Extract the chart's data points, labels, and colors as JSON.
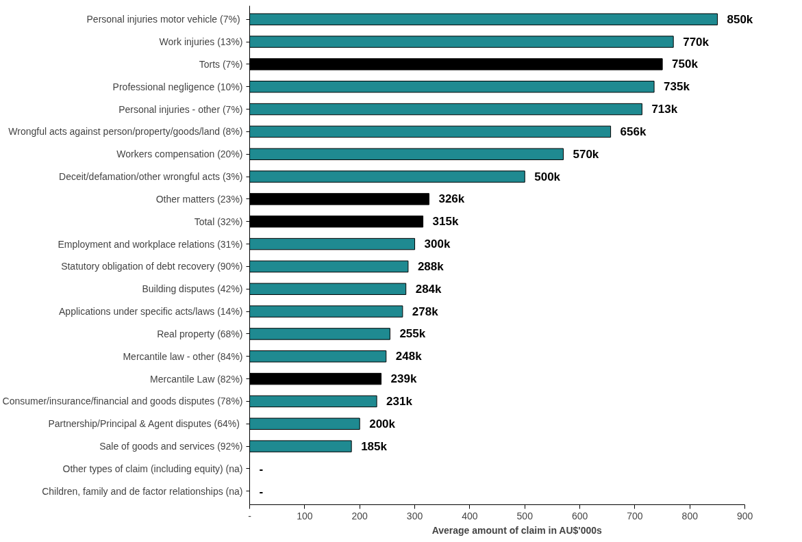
{
  "chart_data": {
    "type": "bar",
    "orientation": "horizontal",
    "xlabel": "Average amount of claim in AU$'000s",
    "categories": [
      "Personal injuries motor vehicle  (7%)",
      "Work injuries (13%)",
      "Torts (7%)",
      "Professional negligence (10%)",
      "Personal injuries - other (7%)",
      "Wrongful acts against person/property/goods/land (8%)",
      "Workers compensation (20%)",
      "Deceit/defamation/other wrongful acts (3%)",
      "Other matters (23%)",
      "Total (32%)",
      "Employment and workplace relations (31%)",
      "Statutory obligation of debt recovery (90%)",
      "Building disputes (42%)",
      "Applications under specific acts/laws (14%)",
      "Real property (68%)",
      "Mercantile law - other (84%)",
      "Mercantile Law (82%)",
      "Consumer/insurance/financial and goods disputes (78%)",
      "Partnership/Principal & Agent disputes  (64%)",
      "Sale of goods and services (92%)",
      "Other types of claim (including equity) (na)",
      "Children, family and de factor relationships (na)"
    ],
    "values": [
      850,
      770,
      750,
      735,
      713,
      656,
      570,
      500,
      326,
      315,
      300,
      288,
      284,
      278,
      255,
      248,
      239,
      231,
      200,
      185,
      null,
      null
    ],
    "value_labels": [
      "850k",
      "770k",
      "750k",
      "735k",
      "713k",
      "656k",
      "570k",
      "500k",
      "326k",
      "315k",
      "300k",
      "288k",
      "284k",
      "278k",
      "255k",
      "248k",
      "239k",
      "231k",
      "200k",
      "185k",
      "-",
      "-"
    ],
    "colors": [
      "#1f8a91",
      "#1f8a91",
      "#000000",
      "#1f8a91",
      "#1f8a91",
      "#1f8a91",
      "#1f8a91",
      "#1f8a91",
      "#000000",
      "#000000",
      "#1f8a91",
      "#1f8a91",
      "#1f8a91",
      "#1f8a91",
      "#1f8a91",
      "#1f8a91",
      "#000000",
      "#1f8a91",
      "#1f8a91",
      "#1f8a91",
      "#1f8a91",
      "#1f8a91"
    ],
    "xlim": [
      0,
      900
    ],
    "xticks": [
      {
        "value": 0,
        "label": "-"
      },
      100,
      200,
      300,
      400,
      500,
      600,
      700,
      800,
      900
    ]
  }
}
